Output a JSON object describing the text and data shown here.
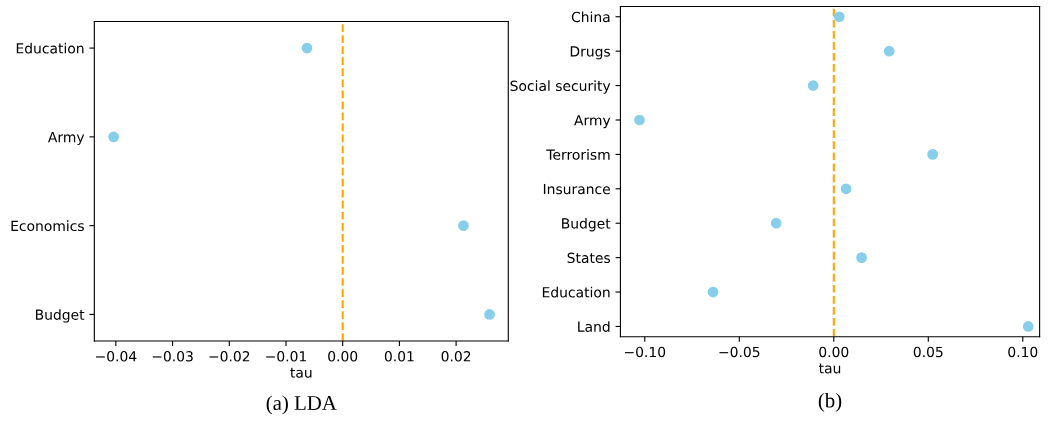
{
  "chart_data": [
    {
      "type": "scatter",
      "orientation": "horizontal",
      "title": "(a) LDA",
      "xlabel": "tau",
      "categories": [
        "Education",
        "Army",
        "Economics",
        "Budget"
      ],
      "series": [
        {
          "color": "#87ceeb",
          "values": [
            -0.0063,
            -0.0404,
            0.0213,
            0.0259
          ]
        }
      ],
      "xlim": [
        -0.0438,
        0.0292
      ],
      "xticks": [
        {
          "value": -0.04,
          "label": "−0.04"
        },
        {
          "value": -0.03,
          "label": "−0.03"
        },
        {
          "value": -0.02,
          "label": "−0.02"
        },
        {
          "value": -0.01,
          "label": "−0.01"
        },
        {
          "value": 0,
          "label": "0.00"
        },
        {
          "value": 0.01,
          "label": "0.01"
        },
        {
          "value": 0.02,
          "label": "0.02"
        }
      ],
      "ref_lines": [
        {
          "axis": "x",
          "value": 0,
          "color": "#ffa500",
          "line_style": "dashed"
        }
      ],
      "marker": "circle",
      "grid": false,
      "legend": false
    },
    {
      "type": "scatter",
      "orientation": "horizontal",
      "title": "(b)",
      "xlabel": "tau",
      "categories": [
        "China",
        "Drugs",
        "Social security",
        "Army",
        "Terrorism",
        "Insurance",
        "Budget",
        "States",
        "Education",
        "Land"
      ],
      "series": [
        {
          "color": "#87ceeb",
          "values": [
            0.0029,
            0.0293,
            -0.0109,
            -0.1028,
            0.0523,
            0.0065,
            -0.0305,
            0.0147,
            -0.0639,
            0.1029
          ]
        }
      ],
      "xlim": [
        -0.1129,
        0.1089
      ],
      "xticks": [
        {
          "value": -0.1,
          "label": "−0.10"
        },
        {
          "value": -0.05,
          "label": "−0.05"
        },
        {
          "value": 0,
          "label": "0.00"
        },
        {
          "value": 0.05,
          "label": "0.05"
        },
        {
          "value": 0.1,
          "label": "0.10"
        }
      ],
      "ref_lines": [
        {
          "axis": "x",
          "value": 0,
          "color": "#ffa500",
          "line_style": "dashed"
        }
      ],
      "marker": "circle",
      "grid": false,
      "legend": false
    }
  ]
}
